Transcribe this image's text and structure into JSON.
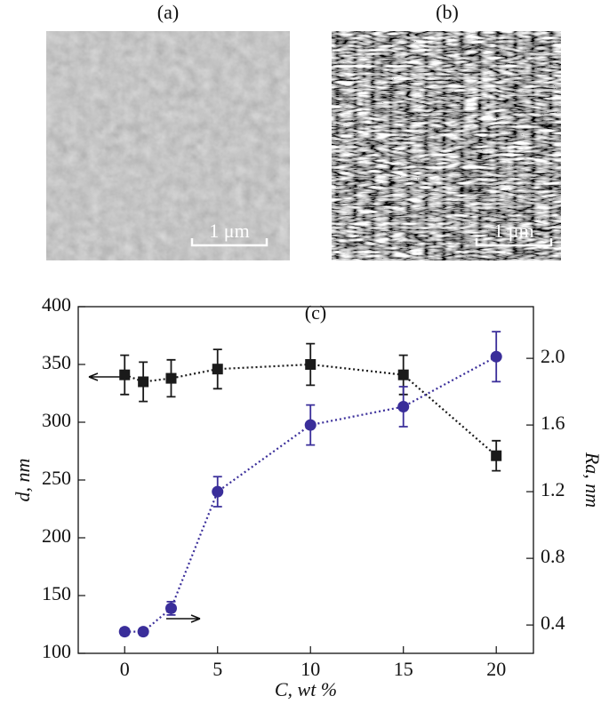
{
  "panels": [
    {
      "label": "(a)",
      "scale_bar": "1 μm"
    },
    {
      "label": "(b)",
      "scale_bar": "1 μm"
    }
  ],
  "chart_data": {
    "type": "scatter",
    "annotation": "(c)",
    "x_label": "C, wt %",
    "y_label": "d, nm",
    "y2_label": "Ra, nm",
    "x": [
      0,
      1,
      2.5,
      5,
      10,
      15,
      20
    ],
    "series": [
      {
        "color": "#1a1a1a",
        "marker": "square",
        "values": [
          341,
          335,
          338,
          346,
          350,
          341,
          271
        ],
        "errors": [
          17,
          17,
          16,
          17,
          18,
          17,
          13
        ]
      },
      {
        "color": "#3a2e9a",
        "marker": "circle",
        "axis": "y2",
        "values": [
          0.36,
          0.36,
          0.5,
          1.2,
          1.6,
          1.71,
          2.01
        ],
        "errors": [
          0.02,
          0.02,
          0.04,
          0.09,
          0.12,
          0.12,
          0.15
        ]
      }
    ],
    "xlim": [
      -2.5,
      22
    ],
    "xticks": [
      0,
      5,
      10,
      15,
      20
    ],
    "ylim": [
      100,
      400
    ],
    "yticks": [
      100,
      150,
      200,
      250,
      300,
      350,
      400
    ],
    "y2lim": [
      0.23,
      2.31
    ],
    "y2ticks": [
      0.4,
      0.8,
      1.2,
      1.6,
      {
        "value": 2,
        "label": "2.0"
      }
    ]
  }
}
